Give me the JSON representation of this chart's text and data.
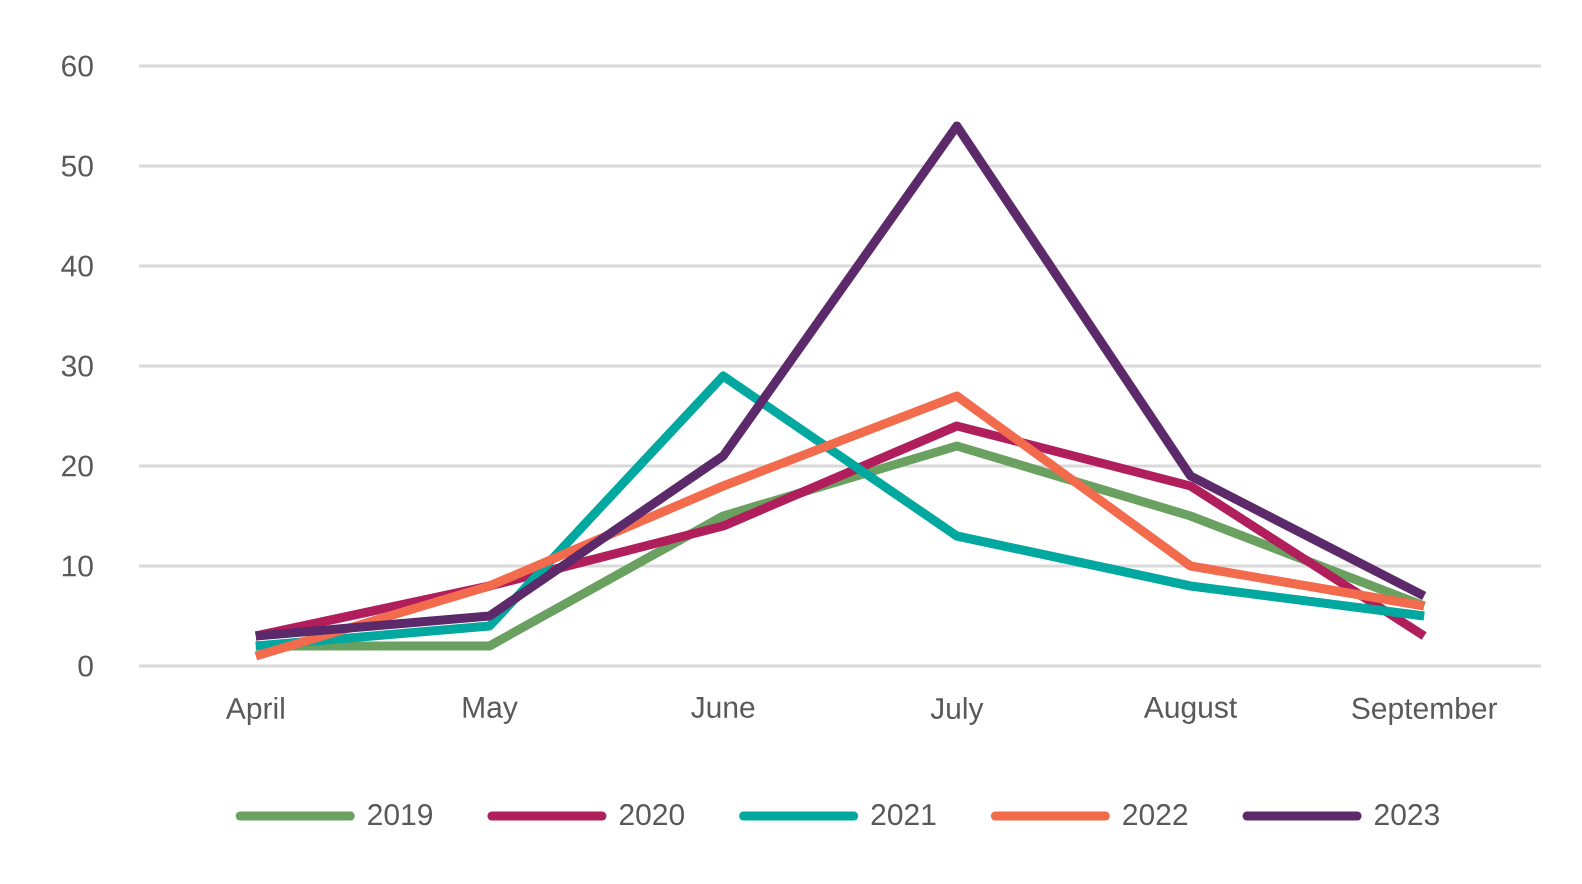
{
  "chart_data": {
    "type": "line",
    "categories": [
      "April",
      "May",
      "June",
      "July",
      "August",
      "September"
    ],
    "series": [
      {
        "name": "2019",
        "color": "#6aa060",
        "values": [
          2,
          2,
          15,
          22,
          15,
          6
        ]
      },
      {
        "name": "2020",
        "color": "#b01f5c",
        "values": [
          3,
          8,
          14,
          24,
          18,
          3
        ]
      },
      {
        "name": "2021",
        "color": "#00a8a0",
        "values": [
          2,
          4,
          29,
          13,
          8,
          5
        ]
      },
      {
        "name": "2022",
        "color": "#f26b4d",
        "values": [
          1,
          8,
          18,
          27,
          10,
          6
        ]
      },
      {
        "name": "2023",
        "color": "#5c2a6a",
        "values": [
          3,
          5,
          21,
          54,
          19,
          7
        ]
      }
    ],
    "ylim": [
      0,
      60
    ],
    "yticks": [
      0,
      10,
      20,
      30,
      40,
      50,
      60
    ],
    "grid": "y",
    "legend": "bottom",
    "marker": "none",
    "line_style": "solid"
  }
}
